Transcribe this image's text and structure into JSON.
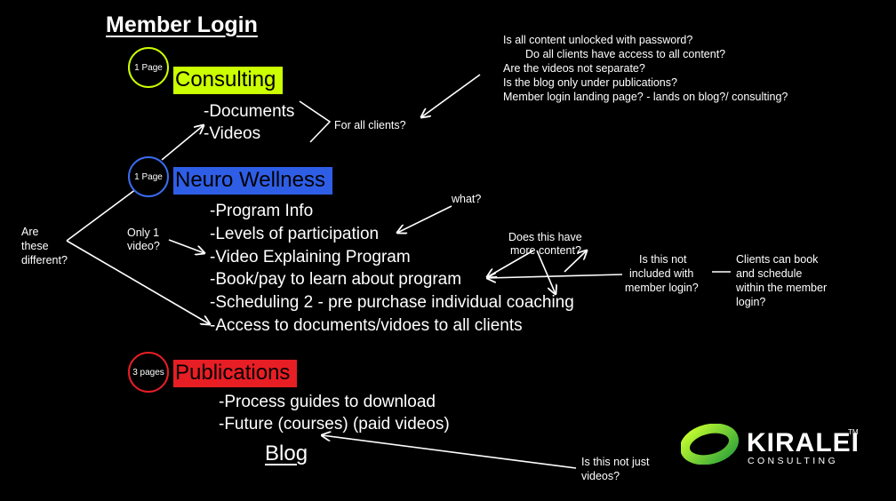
{
  "title": "Member Login",
  "sections": {
    "consulting": {
      "badge": "1 Page",
      "label": "Consulting",
      "color": "#ccff00",
      "badge_color": "#ccff00"
    },
    "neuro": {
      "badge": "1 Page",
      "label": "Neuro Wellness",
      "color": "#2f5ee6",
      "badge_color": "#3b6cf0"
    },
    "publications": {
      "badge": "3 pages",
      "label": "Publications",
      "color": "#e81e25",
      "badge_color": "#e81e25"
    }
  },
  "consulting_items": [
    "-Documents",
    "-Videos"
  ],
  "neuro_items": [
    "-Program Info",
    "-Levels of participation",
    "-Video Explaining Program",
    "-Book/pay to learn about program",
    "-Scheduling 2 - pre purchase individual coaching",
    "-Access to documents/vidoes to all clients"
  ],
  "publications_items": [
    "-Process guides to download",
    "-Future (courses) (paid videos)"
  ],
  "blog": "Blog",
  "notes": {
    "for_all_clients": "For all clients?",
    "questions": [
      "Is all content unlocked with password?",
      "Do all clients have access to all content?",
      "Are the videos not separate?",
      "Is the blog only under publications?",
      "Member login landing page? - lands on blog?/ consulting?"
    ],
    "what": "what?",
    "only_one_video": [
      "Only 1",
      "video?"
    ],
    "are_these_different": [
      "Are",
      "these",
      "different?"
    ],
    "more_content": [
      "Does this have",
      "more content?"
    ],
    "not_included": [
      "Is this not",
      "included with",
      "member login?"
    ],
    "clients_can_book": [
      "Clients can book",
      "and schedule",
      "within the member",
      "login?"
    ],
    "not_just_videos": [
      "Is this not just",
      "videos?"
    ]
  },
  "logo": {
    "name": "KIRALEI",
    "tm": "TM",
    "sub": "CONSULTING",
    "accent": "#7ed321"
  }
}
